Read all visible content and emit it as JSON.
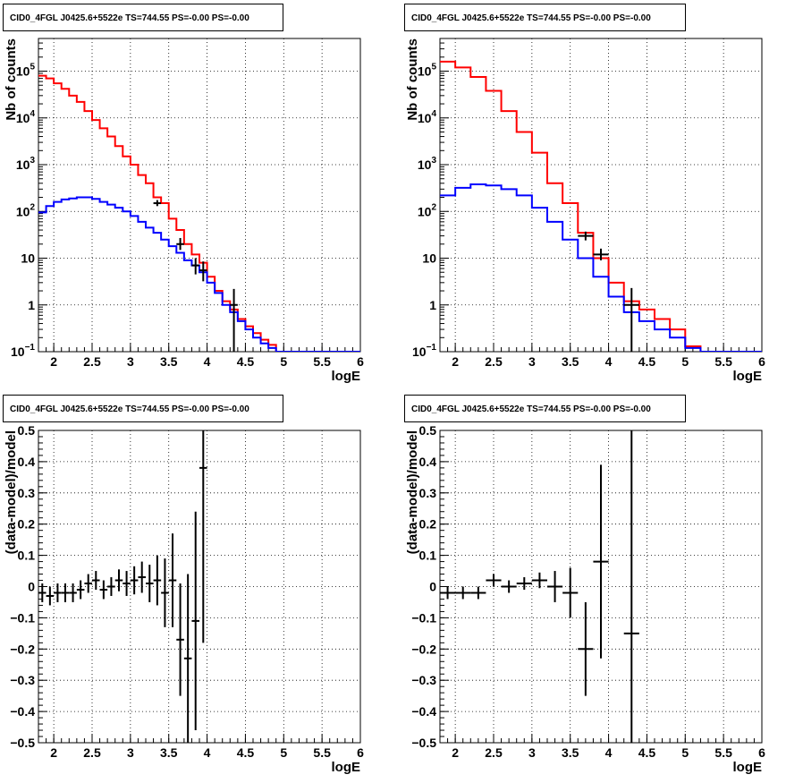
{
  "colors": {
    "model": "#ff0000",
    "background_model": "#0000ff",
    "data": "#000000",
    "grid": "#000000"
  },
  "chart_data": [
    {
      "type": "line",
      "panel": "top-left",
      "title": "CID0_4FGL J0425.6+5522e TS=744.55 PS=-0.00 PS=-0.00",
      "xlabel": "logE",
      "ylabel": "Nb of counts",
      "xlim": [
        1.8,
        6.0
      ],
      "ylim": [
        0.1,
        500000
      ],
      "yscale": "log",
      "grid": true,
      "xticks": [
        2,
        2.5,
        3,
        3.5,
        4,
        4.5,
        5,
        5.5,
        6
      ],
      "xticklabels": [
        "2",
        "2.5",
        "3",
        "3.5",
        "4",
        "4.5",
        "5",
        "5.5",
        "6"
      ],
      "yticks": [
        0.1,
        1,
        10,
        100,
        1000,
        10000,
        100000
      ],
      "yticklabels": [
        {
          "base": "10",
          "exp": "−1"
        },
        {
          "base": "1",
          "exp": ""
        },
        {
          "base": "10",
          "exp": ""
        },
        {
          "base": "10",
          "exp": "2"
        },
        {
          "base": "10",
          "exp": "3"
        },
        {
          "base": "10",
          "exp": "4"
        },
        {
          "base": "10",
          "exp": "5"
        }
      ],
      "bin_edges": [
        1.8,
        1.9,
        2.0,
        2.1,
        2.2,
        2.3,
        2.4,
        2.5,
        2.6,
        2.7,
        2.8,
        2.9,
        3.0,
        3.1,
        3.2,
        3.3,
        3.4,
        3.5,
        3.6,
        3.7,
        3.8,
        3.9,
        4.0,
        4.1,
        4.2,
        4.3,
        4.4,
        4.5,
        4.6,
        4.7,
        4.8,
        4.9,
        5.0,
        5.1,
        6.0
      ],
      "series": [
        {
          "role": "model",
          "color": "red",
          "step_values": [
            80000,
            70000,
            55000,
            42000,
            30000,
            22000,
            14000,
            9000,
            6000,
            4000,
            2500,
            1500,
            1000,
            600,
            400,
            200,
            150,
            70,
            40,
            20,
            12,
            8,
            4,
            2,
            1.2,
            0.8,
            0.5,
            0.35,
            0.25,
            0.18,
            0.14,
            0.1,
            0.1,
            0.1
          ]
        },
        {
          "role": "background_model",
          "color": "blue",
          "step_values": [
            95,
            130,
            160,
            180,
            190,
            200,
            200,
            185,
            160,
            140,
            120,
            100,
            80,
            60,
            45,
            35,
            25,
            18,
            13,
            9,
            7,
            5,
            3,
            1.8,
            1,
            0.7,
            0.45,
            0.3,
            0.2,
            0.15,
            0.12,
            0.1,
            0.1,
            0.1
          ]
        },
        {
          "role": "data",
          "color": "black",
          "points": [
            {
              "x": 3.35,
              "y": 150,
              "xerr": 0.05,
              "ylo": 130,
              "yhi": 175
            },
            {
              "x": 3.65,
              "y": 20,
              "xerr": 0.05,
              "ylo": 15,
              "yhi": 27
            },
            {
              "x": 3.85,
              "y": 7,
              "xerr": 0.05,
              "ylo": 4.5,
              "yhi": 10
            },
            {
              "x": 3.95,
              "y": 5.5,
              "xerr": 0.05,
              "ylo": 3.2,
              "yhi": 8.5
            },
            {
              "x": 4.35,
              "y": 1,
              "xerr": 0.05,
              "ylo": 0.1,
              "yhi": 2.2
            }
          ]
        }
      ]
    },
    {
      "type": "line",
      "panel": "top-right",
      "title": "CID0_4FGL J0425.6+5522e TS=744.55 PS=-0.00 PS=-0.00",
      "xlabel": "logE",
      "ylabel": "Nb of counts",
      "xlim": [
        1.8,
        6.0
      ],
      "ylim": [
        0.1,
        500000
      ],
      "yscale": "log",
      "grid": true,
      "xticks": [
        2,
        2.5,
        3,
        3.5,
        4,
        4.5,
        5,
        5.5,
        6
      ],
      "xticklabels": [
        "2",
        "2.5",
        "3",
        "3.5",
        "4",
        "4.5",
        "5",
        "5.5",
        "6"
      ],
      "yticks": [
        0.1,
        1,
        10,
        100,
        1000,
        10000,
        100000
      ],
      "yticklabels": [
        {
          "base": "10",
          "exp": "−1"
        },
        {
          "base": "1",
          "exp": ""
        },
        {
          "base": "10",
          "exp": ""
        },
        {
          "base": "10",
          "exp": "2"
        },
        {
          "base": "10",
          "exp": "3"
        },
        {
          "base": "10",
          "exp": "4"
        },
        {
          "base": "10",
          "exp": "5"
        }
      ],
      "bin_edges": [
        1.8,
        2.0,
        2.2,
        2.4,
        2.6,
        2.8,
        3.0,
        3.2,
        3.4,
        3.6,
        3.8,
        4.0,
        4.2,
        4.4,
        4.6,
        4.8,
        5.0,
        5.2,
        5.4,
        6.0
      ],
      "series": [
        {
          "role": "model",
          "color": "red",
          "step_values": [
            160000,
            120000,
            75000,
            38000,
            14000,
            5000,
            1800,
            400,
            150,
            35,
            10,
            3,
            1.2,
            0.8,
            0.5,
            0.3,
            0.13,
            0.1,
            0.1
          ]
        },
        {
          "role": "background_model",
          "color": "blue",
          "step_values": [
            220,
            320,
            380,
            360,
            300,
            220,
            120,
            60,
            25,
            10,
            4,
            1.5,
            0.7,
            0.45,
            0.3,
            0.2,
            0.12,
            0.1,
            0.1
          ]
        },
        {
          "role": "data",
          "color": "black",
          "points": [
            {
              "x": 3.7,
              "y": 30,
              "xerr": 0.1,
              "ylo": 24,
              "yhi": 37
            },
            {
              "x": 3.9,
              "y": 12,
              "xerr": 0.1,
              "ylo": 9,
              "yhi": 16
            },
            {
              "x": 4.3,
              "y": 1,
              "xerr": 0.1,
              "ylo": 0.1,
              "yhi": 2.3
            }
          ]
        }
      ]
    },
    {
      "type": "scatter",
      "panel": "bottom-left",
      "title": "CID0_4FGL J0425.6+5522e TS=744.55 PS=-0.00 PS=-0.00",
      "xlabel": "logE",
      "ylabel": "(data-model)/model",
      "xlim": [
        1.8,
        6.0
      ],
      "ylim": [
        -0.5,
        0.5
      ],
      "grid": true,
      "xticks": [
        2,
        2.5,
        3,
        3.5,
        4,
        4.5,
        5,
        5.5,
        6
      ],
      "xticklabels": [
        "2",
        "2.5",
        "3",
        "3.5",
        "4",
        "4.5",
        "5",
        "5.5",
        "6"
      ],
      "yticks": [
        -0.5,
        -0.4,
        -0.3,
        -0.2,
        -0.1,
        0,
        0.1,
        0.2,
        0.3,
        0.4,
        0.5
      ],
      "yticklabels": [
        "−0.5",
        "−0.4",
        "−0.3",
        "−0.2",
        "−0.1",
        "0",
        "0.1",
        "0.2",
        "0.3",
        "0.4",
        "0.5"
      ],
      "points": [
        {
          "x": 1.85,
          "y": -0.02,
          "xerr": 0.05,
          "yerr": 0.03
        },
        {
          "x": 1.95,
          "y": -0.03,
          "xerr": 0.05,
          "yerr": 0.03
        },
        {
          "x": 2.05,
          "y": -0.02,
          "xerr": 0.05,
          "yerr": 0.03
        },
        {
          "x": 2.15,
          "y": -0.02,
          "xerr": 0.05,
          "yerr": 0.03
        },
        {
          "x": 2.25,
          "y": -0.02,
          "xerr": 0.05,
          "yerr": 0.03
        },
        {
          "x": 2.35,
          "y": -0.01,
          "xerr": 0.05,
          "yerr": 0.03
        },
        {
          "x": 2.45,
          "y": 0.01,
          "xerr": 0.05,
          "yerr": 0.03
        },
        {
          "x": 2.55,
          "y": 0.02,
          "xerr": 0.05,
          "yerr": 0.03
        },
        {
          "x": 2.65,
          "y": -0.01,
          "xerr": 0.05,
          "yerr": 0.03
        },
        {
          "x": 2.75,
          "y": 0.0,
          "xerr": 0.05,
          "yerr": 0.03
        },
        {
          "x": 2.85,
          "y": 0.02,
          "xerr": 0.05,
          "yerr": 0.035
        },
        {
          "x": 2.95,
          "y": 0.01,
          "xerr": 0.05,
          "yerr": 0.04
        },
        {
          "x": 3.05,
          "y": 0.02,
          "xerr": 0.05,
          "yerr": 0.045
        },
        {
          "x": 3.15,
          "y": 0.03,
          "xerr": 0.05,
          "yerr": 0.05
        },
        {
          "x": 3.25,
          "y": 0.01,
          "xerr": 0.05,
          "yerr": 0.06
        },
        {
          "x": 3.35,
          "y": 0.02,
          "xerr": 0.05,
          "yerr": 0.08
        },
        {
          "x": 3.45,
          "y": -0.02,
          "xerr": 0.05,
          "yerr": 0.11
        },
        {
          "x": 3.55,
          "y": 0.02,
          "xerr": 0.05,
          "yerr": 0.15
        },
        {
          "x": 3.65,
          "y": -0.17,
          "xerr": 0.05,
          "yerr": 0.18
        },
        {
          "x": 3.75,
          "y": -0.23,
          "xerr": 0.05,
          "yerr": 0.27
        },
        {
          "x": 3.85,
          "y": -0.11,
          "xerr": 0.05,
          "yerr": 0.35
        },
        {
          "x": 3.95,
          "y": 0.38,
          "xerr": 0.05,
          "yerr": 0.56
        }
      ]
    },
    {
      "type": "scatter",
      "panel": "bottom-right",
      "title": "CID0_4FGL J0425.6+5522e TS=744.55 PS=-0.00 PS=-0.00",
      "xlabel": "logE",
      "ylabel": "(data-model)/model",
      "xlim": [
        1.8,
        6.0
      ],
      "ylim": [
        -0.5,
        0.5
      ],
      "grid": true,
      "xticks": [
        2,
        2.5,
        3,
        3.5,
        4,
        4.5,
        5,
        5.5,
        6
      ],
      "xticklabels": [
        "2",
        "2.5",
        "3",
        "3.5",
        "4",
        "4.5",
        "5",
        "5.5",
        "6"
      ],
      "yticks": [
        -0.5,
        -0.4,
        -0.3,
        -0.2,
        -0.1,
        0,
        0.1,
        0.2,
        0.3,
        0.4,
        0.5
      ],
      "yticklabels": [
        "−0.5",
        "−0.4",
        "−0.3",
        "−0.2",
        "−0.1",
        "0",
        "0.1",
        "0.2",
        "0.3",
        "0.4",
        "0.5"
      ],
      "points": [
        {
          "x": 1.9,
          "y": -0.02,
          "xerr": 0.1,
          "yerr": 0.02
        },
        {
          "x": 2.1,
          "y": -0.02,
          "xerr": 0.1,
          "yerr": 0.02
        },
        {
          "x": 2.3,
          "y": -0.02,
          "xerr": 0.1,
          "yerr": 0.02
        },
        {
          "x": 2.5,
          "y": 0.02,
          "xerr": 0.1,
          "yerr": 0.02
        },
        {
          "x": 2.7,
          "y": 0.0,
          "xerr": 0.1,
          "yerr": 0.02
        },
        {
          "x": 2.9,
          "y": 0.01,
          "xerr": 0.1,
          "yerr": 0.02
        },
        {
          "x": 3.1,
          "y": 0.02,
          "xerr": 0.1,
          "yerr": 0.025
        },
        {
          "x": 3.3,
          "y": 0.0,
          "xerr": 0.1,
          "yerr": 0.05
        },
        {
          "x": 3.5,
          "y": -0.02,
          "xerr": 0.1,
          "yerr": 0.08
        },
        {
          "x": 3.7,
          "y": -0.2,
          "xerr": 0.1,
          "yerr": 0.15
        },
        {
          "x": 3.9,
          "y": 0.08,
          "xerr": 0.1,
          "yerr": 0.31
        },
        {
          "x": 4.3,
          "y": -0.15,
          "xerr": 0.1,
          "yerr": 0.65
        }
      ]
    }
  ]
}
